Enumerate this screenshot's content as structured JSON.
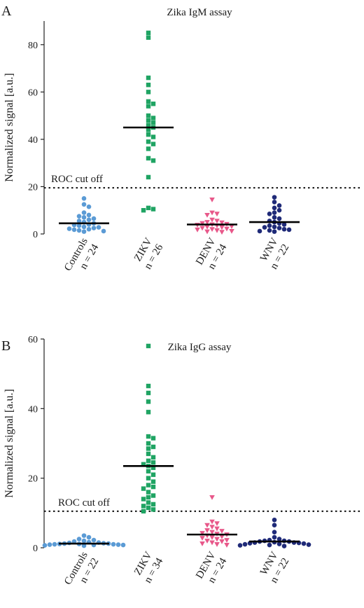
{
  "chart_data": [
    {
      "type": "scatter",
      "panel_label": "A",
      "title": "Zika IgM assay",
      "ylabel": "Normalized signal [a.u.]",
      "xlabel": "",
      "ylim": [
        0,
        90
      ],
      "yticks": [
        0,
        20,
        40,
        60,
        80
      ],
      "grid": false,
      "cutoff": {
        "label": "ROC cut off",
        "value": 19.5
      },
      "categories": [
        {
          "name": "Controls",
          "n_label": "n = 24",
          "color": "#5b9bd5",
          "marker": "circle",
          "median": 4.5,
          "values": [
            15,
            12.5,
            11.5,
            9,
            8,
            7.5,
            7,
            6.5,
            6,
            5.5,
            5,
            4.5,
            4,
            3.8,
            3.5,
            3,
            2.8,
            2.5,
            2.2,
            2,
            1.8,
            1.5,
            1.2,
            1
          ]
        },
        {
          "name": "ZIKV",
          "n_label": "n = 26",
          "color": "#1fa463",
          "marker": "square",
          "median": 45,
          "values": [
            85,
            83,
            66,
            63,
            60,
            56,
            55,
            54,
            50,
            49,
            48,
            47,
            46,
            45,
            44,
            42,
            41,
            39,
            38,
            36,
            32,
            31,
            24,
            11,
            10.5,
            10
          ]
        },
        {
          "name": "DENV",
          "n_label": "n = 24",
          "color": "#e8588a",
          "marker": "triangle-down",
          "median": 4,
          "values": [
            14.5,
            9,
            8.5,
            8,
            6,
            5.5,
            5,
            4.8,
            4.5,
            4.2,
            4,
            3.8,
            3.5,
            3.2,
            3,
            2.8,
            2.5,
            2.2,
            2,
            1.8,
            1.5,
            1.2,
            1,
            0.8
          ]
        },
        {
          "name": "WNV",
          "n_label": "n = 22",
          "color": "#1f2a78",
          "marker": "circle",
          "median": 5,
          "values": [
            15.5,
            13.5,
            12,
            11,
            10,
            9,
            8.5,
            7,
            6.5,
            5.5,
            5,
            4.5,
            4,
            3.5,
            3,
            2.8,
            2.5,
            2,
            1.8,
            1.5,
            1.2,
            1
          ]
        }
      ]
    },
    {
      "type": "scatter",
      "panel_label": "B",
      "title": "Zika IgG assay",
      "ylabel": "Normalized signal [a.u.]",
      "xlabel": "",
      "ylim": [
        0,
        60
      ],
      "yticks": [
        0,
        20,
        40,
        60
      ],
      "grid": false,
      "cutoff": {
        "label": "ROC cut off",
        "value": 10.5
      },
      "categories": [
        {
          "name": "Controls",
          "n_label": "n = 22",
          "color": "#5b9bd5",
          "marker": "circle",
          "median": 1.2,
          "values": [
            3.5,
            3,
            2.5,
            2.2,
            2,
            1.8,
            1.6,
            1.5,
            1.4,
            1.3,
            1.2,
            1.2,
            1.1,
            1.1,
            1,
            1,
            0.9,
            0.9,
            0.8,
            0.8,
            0.7,
            0.6
          ]
        },
        {
          "name": "ZIKV",
          "n_label": "n = 34",
          "color": "#1fa463",
          "marker": "square",
          "median": 23.5,
          "values": [
            58,
            46.5,
            44.5,
            42,
            39,
            32,
            31.5,
            30,
            29,
            28.5,
            27,
            26,
            25,
            24.5,
            24,
            23.5,
            23,
            22,
            21,
            20,
            19,
            18,
            17.5,
            17,
            16,
            15,
            14.5,
            14,
            13,
            12.5,
            12,
            11.5,
            11,
            10.5
          ]
        },
        {
          "name": "DENV",
          "n_label": "n = 24",
          "color": "#e8588a",
          "marker": "triangle-down",
          "median": 3.8,
          "values": [
            14.5,
            7.5,
            7,
            6.5,
            6,
            5.5,
            5,
            4.8,
            4.5,
            4.2,
            4,
            3.8,
            3.5,
            3.2,
            3,
            2.8,
            2.5,
            2.2,
            2,
            1.8,
            1.5,
            1.2,
            1,
            0.8
          ]
        },
        {
          "name": "WNV",
          "n_label": "n = 22",
          "color": "#1f2a78",
          "marker": "circle",
          "median": 1.8,
          "values": [
            8,
            6.5,
            4.5,
            3,
            2.5,
            2.2,
            2,
            2,
            1.8,
            1.8,
            1.6,
            1.5,
            1.5,
            1.4,
            1.3,
            1.2,
            1.1,
            1,
            0.9,
            0.8,
            0.7,
            0.5
          ]
        }
      ]
    }
  ]
}
